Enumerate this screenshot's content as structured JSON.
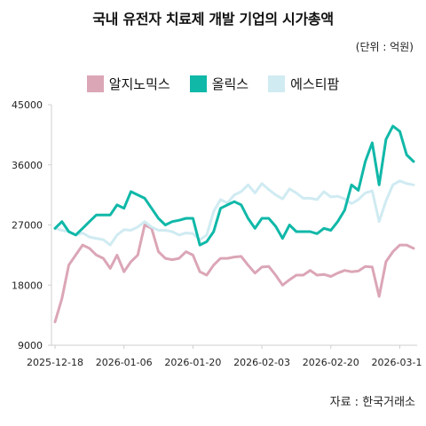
{
  "chart_data": {
    "type": "line",
    "title": "국내 유전자 치료제 개발 기업의 시가총액",
    "unit_note": "(단위 : 억원)",
    "source": "자료 : 한국거래소",
    "xlabel": "",
    "ylabel": "",
    "ylim": [
      9000,
      45000
    ],
    "yticks": [
      9000,
      18000,
      27000,
      36000,
      45000
    ],
    "grid": false,
    "legend_position": "top",
    "x_tick_labels": [
      "2025-12-18",
      "2026-01-06",
      "2026-01-20",
      "2026-02-03",
      "2026-02-20",
      "2026-03-1"
    ],
    "x_tick_index": [
      0,
      10,
      20,
      30,
      40,
      50
    ],
    "series": [
      {
        "name": "알지노믹스",
        "color": "#dba6b6",
        "values": [
          12500,
          16000,
          21000,
          22500,
          24000,
          23500,
          22500,
          22000,
          20500,
          22500,
          20000,
          21500,
          22500,
          27000,
          26500,
          23000,
          22000,
          21800,
          22000,
          23000,
          22500,
          20000,
          19500,
          21000,
          22000,
          22000,
          22200,
          22300,
          21000,
          19800,
          20700,
          20800,
          19500,
          18000,
          18800,
          19500,
          19500,
          20200,
          19500,
          19600,
          19300,
          19800,
          20200,
          20000,
          20100,
          20800,
          20700,
          16300,
          21500,
          23000,
          24000,
          24000,
          23500
        ]
      },
      {
        "name": "올릭스",
        "color": "#10b8a8",
        "values": [
          26500,
          27500,
          26000,
          25500,
          26500,
          27500,
          28500,
          28500,
          28500,
          30000,
          29500,
          32000,
          31500,
          31000,
          29500,
          28000,
          27000,
          27500,
          27700,
          28000,
          28000,
          24000,
          24500,
          26000,
          29500,
          30000,
          30500,
          30000,
          28000,
          26500,
          28000,
          28000,
          26800,
          25000,
          27000,
          26000,
          26000,
          26000,
          25700,
          26500,
          26200,
          27500,
          29200,
          33000,
          32200,
          36500,
          39300,
          33000,
          39800,
          41800,
          41000,
          37500,
          36500
        ]
      },
      {
        "name": "에스티팜",
        "color": "#d0ebf2",
        "values": [
          26500,
          26200,
          26000,
          25500,
          25800,
          25200,
          25000,
          24800,
          24000,
          25500,
          26300,
          26200,
          26700,
          27500,
          26700,
          26200,
          26200,
          26000,
          25500,
          25800,
          25700,
          24800,
          25500,
          29000,
          30800,
          30300,
          31500,
          32000,
          33000,
          31800,
          33200,
          32300,
          31500,
          30900,
          32400,
          31800,
          31000,
          31000,
          30800,
          32000,
          31200,
          31300,
          30900,
          30200,
          30800,
          31800,
          32100,
          27500,
          30600,
          33000,
          33600,
          33200,
          33000
        ]
      }
    ]
  }
}
